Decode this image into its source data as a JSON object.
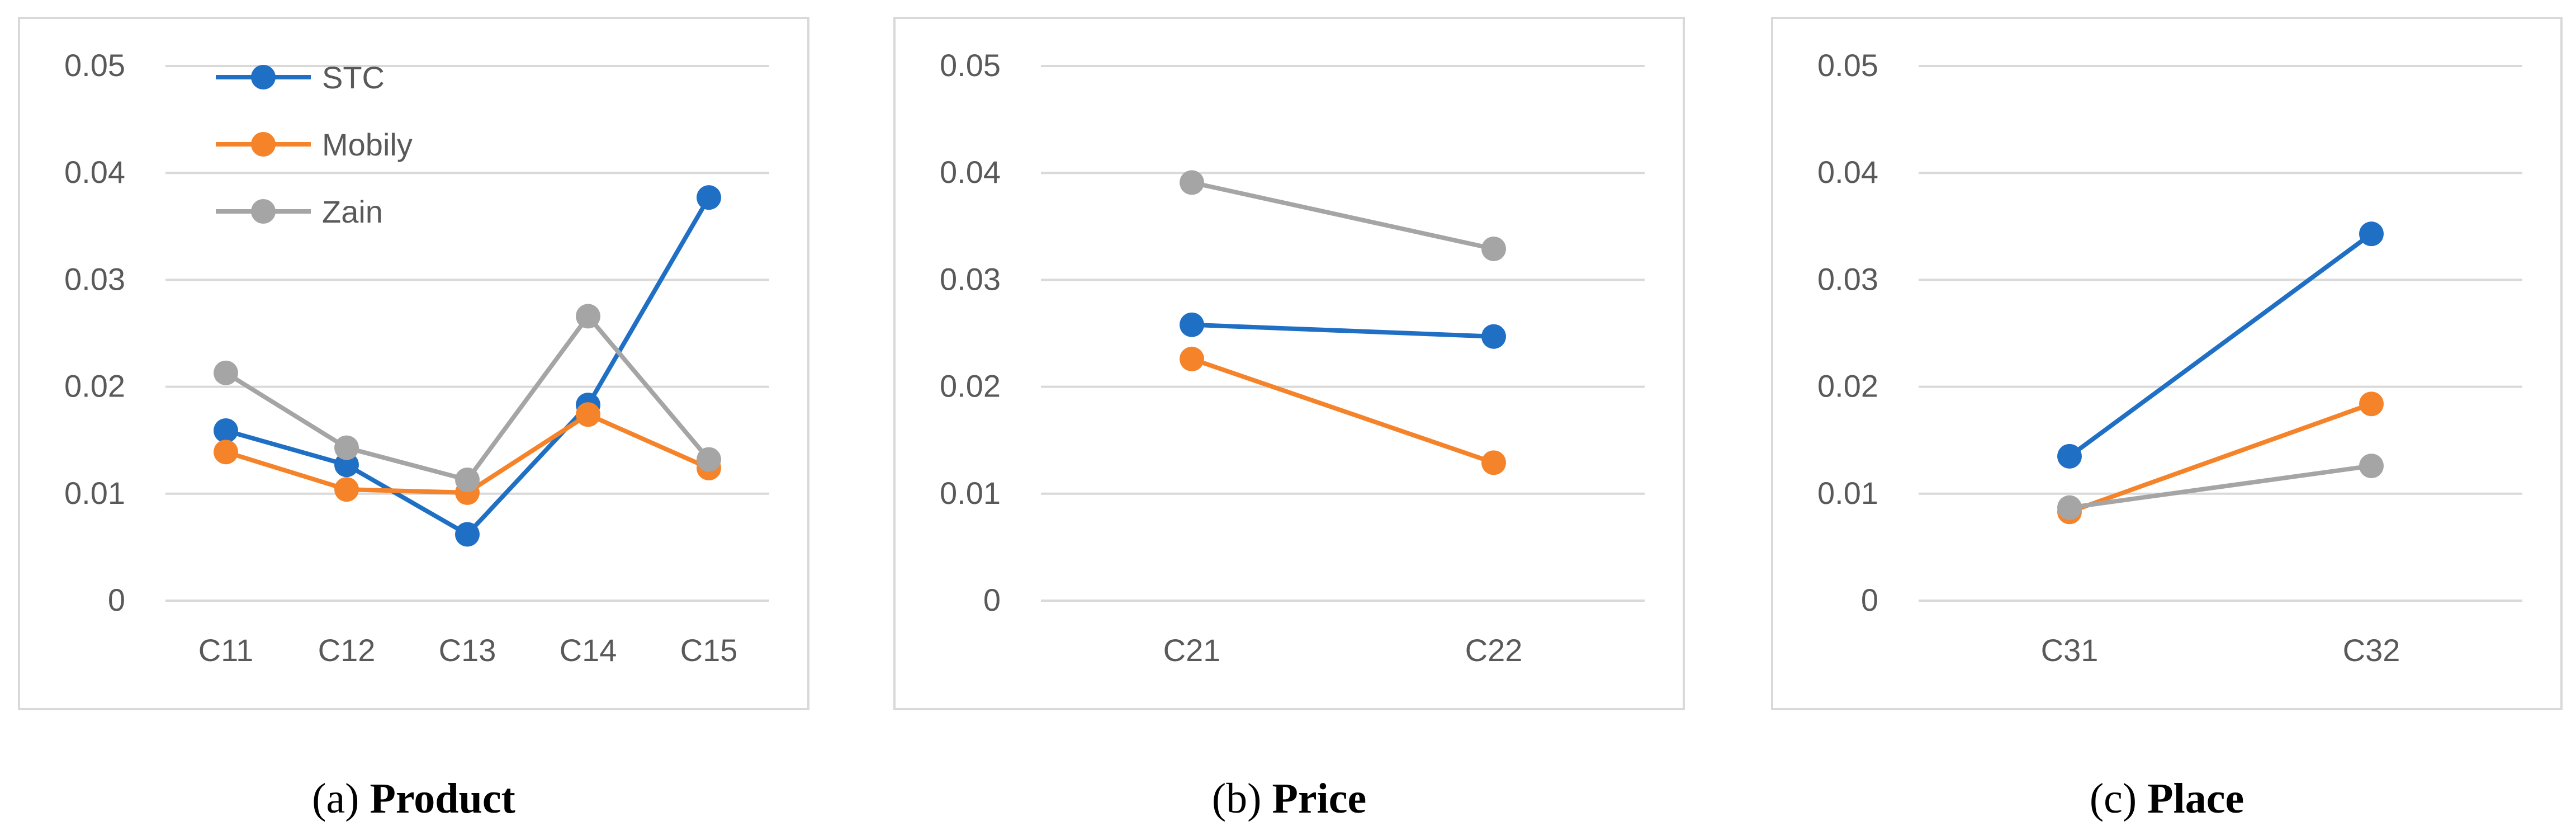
{
  "colors": {
    "STC": "#1f6fc4",
    "Mobily": "#f5832a",
    "Zain": "#a5a5a5",
    "grid": "#d9d9d9",
    "tick": "#595959"
  },
  "legend": [
    "STC",
    "Mobily",
    "Zain"
  ],
  "chart_data": [
    {
      "type": "line",
      "caption_label": "(a)",
      "caption_title": "Product",
      "categories": [
        "C11",
        "C12",
        "C13",
        "C14",
        "C15"
      ],
      "ylim": [
        0,
        0.05
      ],
      "yticks": [
        "0",
        "0.01",
        "0.02",
        "0.03",
        "0.04",
        "0.05"
      ],
      "grid": true,
      "legend_position": "top-left",
      "series": [
        {
          "name": "STC",
          "values": [
            0.0159,
            0.0127,
            0.0062,
            0.0183,
            0.0377
          ]
        },
        {
          "name": "Mobily",
          "values": [
            0.0139,
            0.0104,
            0.0101,
            0.0174,
            0.0124
          ]
        },
        {
          "name": "Zain",
          "values": [
            0.0213,
            0.0143,
            0.0113,
            0.0266,
            0.0132
          ]
        }
      ]
    },
    {
      "type": "line",
      "caption_label": "(b)",
      "caption_title": "Price",
      "categories": [
        "C21",
        "C22"
      ],
      "ylim": [
        0,
        0.05
      ],
      "yticks": [
        "0",
        "0.01",
        "0.02",
        "0.03",
        "0.04",
        "0.05"
      ],
      "grid": true,
      "series": [
        {
          "name": "STC",
          "values": [
            0.0258,
            0.0247
          ]
        },
        {
          "name": "Mobily",
          "values": [
            0.0226,
            0.0129
          ]
        },
        {
          "name": "Zain",
          "values": [
            0.0391,
            0.0329
          ]
        }
      ]
    },
    {
      "type": "line",
      "caption_label": "(c)",
      "caption_title": "Place",
      "categories": [
        "C31",
        "C32"
      ],
      "ylim": [
        0,
        0.05
      ],
      "yticks": [
        "0",
        "0.01",
        "0.02",
        "0.03",
        "0.04",
        "0.05"
      ],
      "grid": true,
      "series": [
        {
          "name": "STC",
          "values": [
            0.0135,
            0.0343
          ]
        },
        {
          "name": "Mobily",
          "values": [
            0.0083,
            0.0184
          ]
        },
        {
          "name": "Zain",
          "values": [
            0.0087,
            0.0126
          ]
        }
      ]
    }
  ]
}
